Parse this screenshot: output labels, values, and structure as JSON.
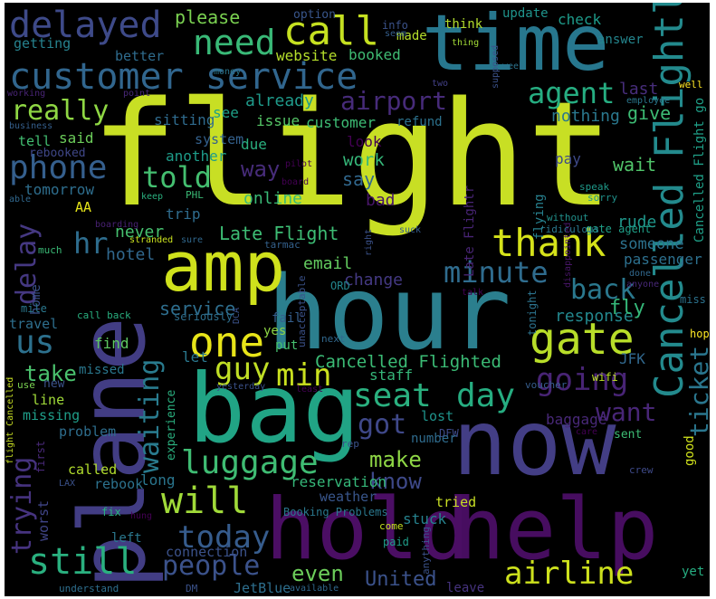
{
  "words": [
    {
      "text": "flight",
      "color": "#c8df24"
    },
    {
      "text": "hour",
      "color": "#2b7f8e"
    },
    {
      "text": "bag",
      "color": "#21a485"
    },
    {
      "text": "now",
      "color": "#433e85"
    },
    {
      "text": "plane",
      "color": "#423d84"
    },
    {
      "text": "hold",
      "color": "#4b0e64"
    },
    {
      "text": "help",
      "color": "#470d60"
    },
    {
      "text": "time",
      "color": "#27778e"
    },
    {
      "text": "amp",
      "color": "#cfe11c"
    },
    {
      "text": "customer service",
      "color": "#31668e"
    },
    {
      "text": "delayed",
      "color": "#3e4a89"
    },
    {
      "text": "call",
      "color": "#c5e021"
    },
    {
      "text": "need",
      "color": "#39b977"
    },
    {
      "text": "please",
      "color": "#7ad151"
    },
    {
      "text": "Cancelled Flightled",
      "color": "#238a8d"
    },
    {
      "text": "airport",
      "color": "#472b7a"
    },
    {
      "text": "agent",
      "color": "#26ad81"
    },
    {
      "text": "really",
      "color": "#8fd744"
    },
    {
      "text": "phone",
      "color": "#355f8d"
    },
    {
      "text": "told",
      "color": "#44bf70"
    },
    {
      "text": "thank",
      "color": "#d5e21a"
    },
    {
      "text": "minute",
      "color": "#2f6c8e"
    },
    {
      "text": "hr",
      "color": "#2e6d8e"
    },
    {
      "text": "delay",
      "color": "#453882"
    },
    {
      "text": "us",
      "color": "#2d718e"
    },
    {
      "text": "one",
      "color": "#e7e419"
    },
    {
      "text": "gate",
      "color": "#b8de29"
    },
    {
      "text": "back",
      "color": "#2a788e"
    },
    {
      "text": "Late Flight",
      "color": "#3dbc74"
    },
    {
      "text": "waiting",
      "color": "#297b8e"
    },
    {
      "text": "guy",
      "color": "#c0df25"
    },
    {
      "text": "min",
      "color": "#cae11f"
    },
    {
      "text": "seat",
      "color": "#2ab07f"
    },
    {
      "text": "day",
      "color": "#26ad81"
    },
    {
      "text": "going",
      "color": "#482475"
    },
    {
      "text": "trying",
      "color": "#46337f"
    },
    {
      "text": "take",
      "color": "#4ac16d"
    },
    {
      "text": "Cancelled Flighted",
      "color": "#3bbb75"
    },
    {
      "text": "ticket",
      "color": "#2a768e"
    },
    {
      "text": "want",
      "color": "#482677"
    },
    {
      "text": "got",
      "color": "#3f4889"
    },
    {
      "text": "luggage",
      "color": "#3fbc73"
    },
    {
      "text": "will",
      "color": "#a0da39"
    },
    {
      "text": "make",
      "color": "#8ed645"
    },
    {
      "text": "know",
      "color": "#3e4989"
    },
    {
      "text": "today",
      "color": "#365c8d"
    },
    {
      "text": "still",
      "color": "#2ab07f"
    },
    {
      "text": "people",
      "color": "#3b528b"
    },
    {
      "text": "airline",
      "color": "#cde11d"
    },
    {
      "text": "even",
      "color": "#6ccd5a"
    },
    {
      "text": "United",
      "color": "#3b528b"
    },
    {
      "text": "way",
      "color": "#472c7a"
    },
    {
      "text": "say",
      "color": "#31688e"
    },
    {
      "text": "work",
      "color": "#35b779"
    },
    {
      "text": "wait",
      "color": "#50c46a"
    },
    {
      "text": "rude",
      "color": "#1f978b"
    },
    {
      "text": "someone",
      "color": "#2c728e"
    },
    {
      "text": "passenger",
      "color": "#2d708e"
    },
    {
      "text": "response",
      "color": "#23888e"
    },
    {
      "text": "fly",
      "color": "#35b779"
    },
    {
      "text": "service",
      "color": "#2e6e8e"
    },
    {
      "text": "email",
      "color": "#63cb5f"
    },
    {
      "text": "change",
      "color": "#443983"
    },
    {
      "text": "hotel",
      "color": "#31688e"
    },
    {
      "text": "never",
      "color": "#46c06f"
    },
    {
      "text": "online",
      "color": "#3aba76"
    },
    {
      "text": "bad",
      "color": "#481668"
    },
    {
      "text": "trip",
      "color": "#2f6c8e"
    },
    {
      "text": "AA",
      "color": "#e5e419"
    },
    {
      "text": "tomorrow",
      "color": "#2e6e8e"
    },
    {
      "text": "another",
      "color": "#1e9c89"
    },
    {
      "text": "due",
      "color": "#2ab07f"
    },
    {
      "text": "issue",
      "color": "#55c667"
    },
    {
      "text": "customer",
      "color": "#3dbc74"
    },
    {
      "text": "sitting",
      "color": "#2f6b8e"
    },
    {
      "text": "system",
      "color": "#34618d"
    },
    {
      "text": "look",
      "color": "#440154"
    },
    {
      "text": "refund",
      "color": "#2c728e"
    },
    {
      "text": "nothing",
      "color": "#2a788e"
    },
    {
      "text": "give",
      "color": "#3dbc74"
    },
    {
      "text": "last",
      "color": "#472d7b"
    },
    {
      "text": "pay",
      "color": "#3e4a89"
    },
    {
      "text": "said",
      "color": "#6ccd5a"
    },
    {
      "text": "tell",
      "color": "#42be71"
    },
    {
      "text": "rebooked",
      "color": "#3f4788"
    },
    {
      "text": "see",
      "color": "#1fa088"
    },
    {
      "text": "already",
      "color": "#1f9a8a"
    },
    {
      "text": "website",
      "color": "#b5de2b"
    },
    {
      "text": "booked",
      "color": "#3fbc73"
    },
    {
      "text": "made",
      "color": "#b5de2b"
    },
    {
      "text": "better",
      "color": "#2f6c8e"
    },
    {
      "text": "getting",
      "color": "#26828e"
    },
    {
      "text": "check",
      "color": "#1e9b8a"
    },
    {
      "text": "update",
      "color": "#1f948c"
    },
    {
      "text": "answer",
      "color": "#24868e"
    },
    {
      "text": "think",
      "color": "#b2dd2d"
    },
    {
      "text": "option",
      "color": "#39568c"
    },
    {
      "text": "info",
      "color": "#3b528b"
    },
    {
      "text": "seem",
      "color": "#355f8d"
    },
    {
      "text": "thing",
      "color": "#a2da37"
    },
    {
      "text": "week",
      "color": "#2c738e"
    },
    {
      "text": "two",
      "color": "#424086"
    },
    {
      "text": "money",
      "color": "#2a768e"
    },
    {
      "text": "well",
      "color": "#fde725"
    },
    {
      "text": "employee",
      "color": "#2a788e"
    },
    {
      "text": "point",
      "color": "#482878"
    },
    {
      "text": "working",
      "color": "#482475"
    },
    {
      "text": "business",
      "color": "#355f8d"
    },
    {
      "text": "supposed",
      "color": "#3b528b"
    },
    {
      "text": "pilot",
      "color": "#440154"
    },
    {
      "text": "board",
      "color": "#440154"
    },
    {
      "text": "keep",
      "color": "#2ab07f"
    },
    {
      "text": "PHL",
      "color": "#3aba76"
    },
    {
      "text": "able",
      "color": "#31688e"
    },
    {
      "text": "boarding",
      "color": "#482173"
    },
    {
      "text": "sure",
      "color": "#31688e"
    },
    {
      "text": "stranded",
      "color": "#cae11f"
    },
    {
      "text": "much",
      "color": "#3aba76"
    },
    {
      "text": "tarmac",
      "color": "#34618d"
    },
    {
      "text": "speak",
      "color": "#1f9a8a"
    },
    {
      "text": "sorry",
      "color": "#20928c"
    },
    {
      "text": "without",
      "color": "#21918c"
    },
    {
      "text": "gate agent",
      "color": "#1fa088"
    },
    {
      "text": "ridiculous",
      "color": "#2a788e"
    },
    {
      "text": "suck",
      "color": "#365d8d"
    },
    {
      "text": "right",
      "color": "#3b528b"
    },
    {
      "text": "disappointed",
      "color": "#481668"
    },
    {
      "text": "done",
      "color": "#31688e"
    },
    {
      "text": "anyone",
      "color": "#482878"
    },
    {
      "text": "flying",
      "color": "#27808e"
    },
    {
      "text": "Late Flightr",
      "color": "#482475"
    },
    {
      "text": "Cancelled Flight go",
      "color": "#1fa088"
    },
    {
      "text": "home",
      "color": "#3b528b"
    },
    {
      "text": "mile",
      "color": "#2a788e"
    },
    {
      "text": "ORD",
      "color": "#24868e"
    },
    {
      "text": "call back",
      "color": "#29af7f"
    },
    {
      "text": "travel",
      "color": "#2e6f8e"
    },
    {
      "text": "seriously",
      "color": "#2e6f8e"
    },
    {
      "text": "DCA",
      "color": "#3b528b"
    },
    {
      "text": "unacceptable",
      "color": "#3b528b"
    },
    {
      "text": "next",
      "color": "#31688e"
    },
    {
      "text": "talk",
      "color": "#440154"
    },
    {
      "text": "tonight",
      "color": "#2c738e"
    },
    {
      "text": "miss",
      "color": "#2c728e"
    },
    {
      "text": "hope",
      "color": "#fde725"
    },
    {
      "text": "fail",
      "color": "#355f8d"
    },
    {
      "text": "yes",
      "color": "#8ed645"
    },
    {
      "text": "put",
      "color": "#46c06f"
    },
    {
      "text": "find",
      "color": "#5ec962"
    },
    {
      "text": "let",
      "color": "#2a788e"
    },
    {
      "text": "staff",
      "color": "#35b779"
    },
    {
      "text": "JFK",
      "color": "#31688e"
    },
    {
      "text": "wifi",
      "color": "#bddf26"
    },
    {
      "text": "voucher",
      "color": "#365d8d"
    },
    {
      "text": "missed",
      "color": "#2a788e"
    },
    {
      "text": "flight Cancelled",
      "color": "#c8df24"
    },
    {
      "text": "use",
      "color": "#7ad151"
    },
    {
      "text": "new",
      "color": "#3b528b"
    },
    {
      "text": "line",
      "color": "#a0da39"
    },
    {
      "text": "missing",
      "color": "#1f9e89"
    },
    {
      "text": "yesterday",
      "color": "#3b528b"
    },
    {
      "text": "least",
      "color": "#440154"
    },
    {
      "text": "experience",
      "color": "#2ab07f"
    },
    {
      "text": "lost",
      "color": "#1f948c"
    },
    {
      "text": "baggage",
      "color": "#482878"
    },
    {
      "text": "DFW",
      "color": "#3e4a89"
    },
    {
      "text": "care",
      "color": "#440154"
    },
    {
      "text": "sent",
      "color": "#3dbc74"
    },
    {
      "text": "problem",
      "color": "#2e6e8e"
    },
    {
      "text": "number",
      "color": "#2f6c8e"
    },
    {
      "text": "rep",
      "color": "#3b528b"
    },
    {
      "text": "good",
      "color": "#cfe11c"
    },
    {
      "text": "crew",
      "color": "#3e4a89"
    },
    {
      "text": "first",
      "color": "#482878"
    },
    {
      "text": "worst",
      "color": "#404588"
    },
    {
      "text": "called",
      "color": "#b2dd2d"
    },
    {
      "text": "long",
      "color": "#2a768e"
    },
    {
      "text": "rebook",
      "color": "#2c728e"
    },
    {
      "text": "reservation",
      "color": "#35b779"
    },
    {
      "text": "LAX",
      "color": "#3b528b"
    },
    {
      "text": "weather",
      "color": "#39568c"
    },
    {
      "text": "tried",
      "color": "#c8df24"
    },
    {
      "text": "stuck",
      "color": "#26828e"
    },
    {
      "text": "hung",
      "color": "#440154"
    },
    {
      "text": "fix",
      "color": "#2ab07f"
    },
    {
      "text": "Booking Problems",
      "color": "#2a788e"
    },
    {
      "text": "come",
      "color": "#c5e021"
    },
    {
      "text": "anything",
      "color": "#3b528b"
    },
    {
      "text": "paid",
      "color": "#1f9e89"
    },
    {
      "text": "left",
      "color": "#2a788e"
    },
    {
      "text": "connection",
      "color": "#3b528b"
    },
    {
      "text": "understand",
      "color": "#2e6f8e"
    },
    {
      "text": "DM",
      "color": "#3b528b"
    },
    {
      "text": "JetBlue",
      "color": "#2e6f8e"
    },
    {
      "text": "available",
      "color": "#31688e"
    },
    {
      "text": "leave",
      "color": "#46337f"
    },
    {
      "text": "yet",
      "color": "#26ad81"
    }
  ]
}
